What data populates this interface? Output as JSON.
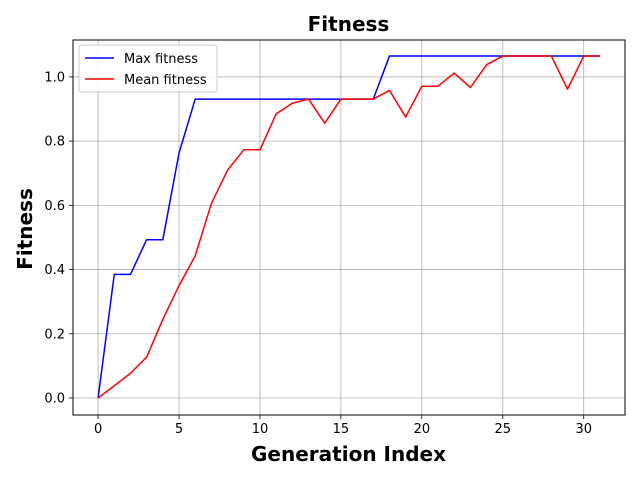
{
  "chart_data": {
    "type": "line",
    "title": "Fitness",
    "xlabel": "Generation Index",
    "ylabel": "Fitness",
    "xlim": [
      -1.55,
      32.55
    ],
    "ylim": [
      -0.053,
      1.115
    ],
    "xticks": [
      0,
      5,
      10,
      15,
      20,
      25,
      30
    ],
    "yticks": [
      0.0,
      0.2,
      0.4,
      0.6,
      0.8,
      1.0
    ],
    "ytick_labels": [
      "0.0",
      "0.2",
      "0.4",
      "0.6",
      "0.8",
      "1.0"
    ],
    "grid": true,
    "legend_position": "top-left",
    "x": [
      0,
      1,
      2,
      3,
      4,
      5,
      6,
      7,
      8,
      9,
      10,
      11,
      12,
      13,
      14,
      15,
      16,
      17,
      18,
      19,
      20,
      21,
      22,
      23,
      24,
      25,
      26,
      27,
      28,
      29,
      30,
      31
    ],
    "series": [
      {
        "name": "Max fitness",
        "color": "#0000ff",
        "values": [
          0.0,
          0.385,
          0.385,
          0.493,
          0.493,
          0.763,
          0.931,
          0.931,
          0.931,
          0.931,
          0.931,
          0.931,
          0.931,
          0.931,
          0.931,
          0.931,
          0.931,
          0.931,
          1.065,
          1.065,
          1.065,
          1.065,
          1.065,
          1.065,
          1.065,
          1.065,
          1.065,
          1.065,
          1.065,
          1.065,
          1.065,
          1.065
        ]
      },
      {
        "name": "Mean fitness",
        "color": "#ff0000",
        "values": [
          0.0,
          0.038,
          0.077,
          0.127,
          0.245,
          0.35,
          0.443,
          0.606,
          0.71,
          0.773,
          0.773,
          0.885,
          0.918,
          0.931,
          0.856,
          0.931,
          0.931,
          0.931,
          0.958,
          0.875,
          0.971,
          0.971,
          1.012,
          0.967,
          1.038,
          1.065,
          1.065,
          1.065,
          1.065,
          0.962,
          1.065,
          1.065
        ]
      }
    ]
  }
}
